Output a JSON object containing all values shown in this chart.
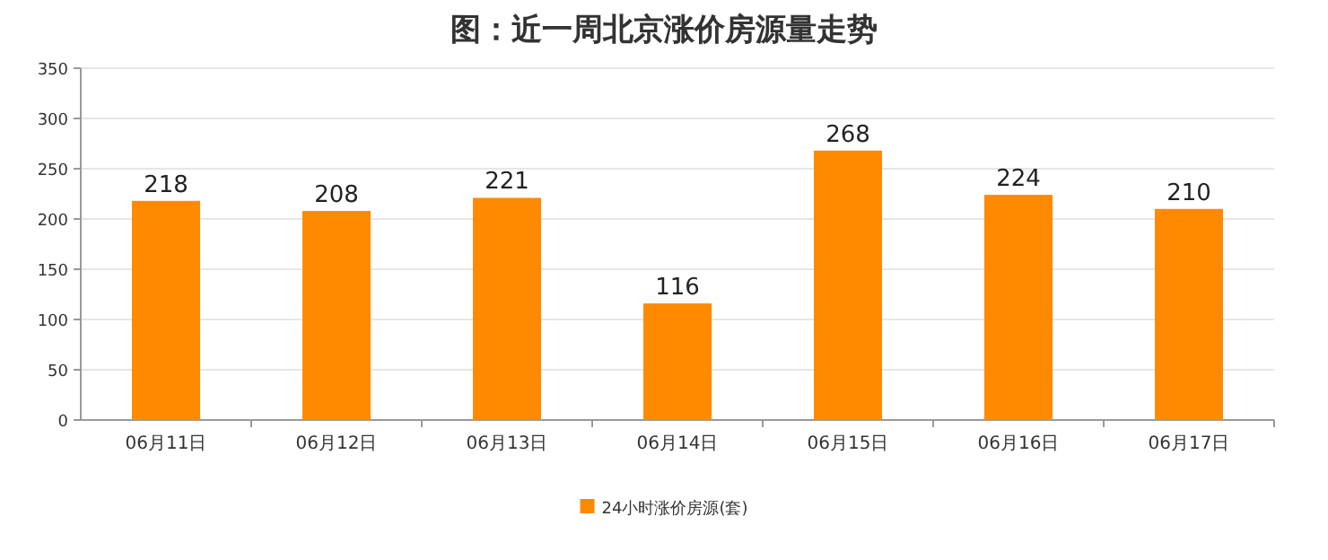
{
  "chart_data": {
    "type": "bar",
    "title": "图：近一周北京涨价房源量走势",
    "categories": [
      "06月11日",
      "06月12日",
      "06月13日",
      "06月14日",
      "06月15日",
      "06月16日",
      "06月17日"
    ],
    "series": [
      {
        "name": "24小时涨价房源(套)",
        "color": "#ff8a00",
        "values": [
          218,
          208,
          221,
          116,
          268,
          224,
          210
        ]
      }
    ],
    "ylim": [
      0,
      350
    ],
    "yticks": [
      0,
      50,
      100,
      150,
      200,
      250,
      300,
      350
    ],
    "grid": "y",
    "legend": "bottom",
    "data_labels": true
  }
}
